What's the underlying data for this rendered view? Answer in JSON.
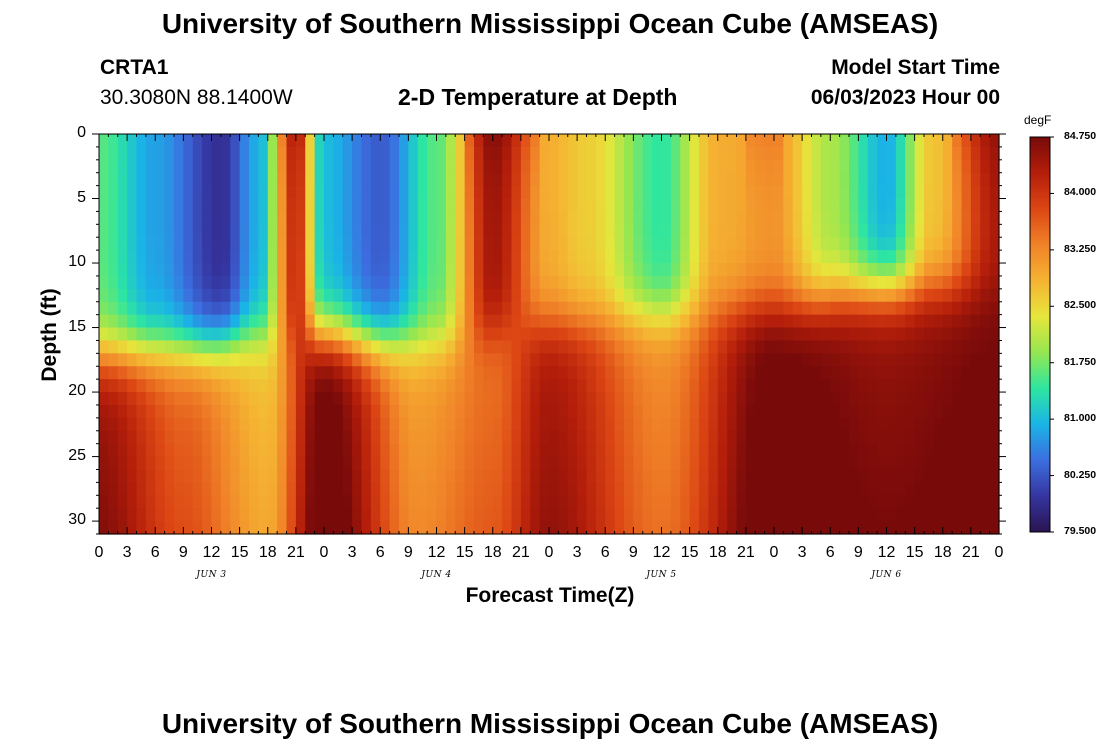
{
  "page": {
    "title": "University of Southern Mississippi Ocean Cube (AMSEAS)",
    "station": "CRTA1",
    "coordinates": "30.3080N  88.1400W",
    "subtitle": "2-D Temperature at Depth",
    "model_start_label": "Model Start Time",
    "model_start_value": "06/03/2023 Hour 00",
    "footer_title": "University of Southern Mississippi Ocean Cube (AMSEAS)"
  },
  "chart_data": {
    "type": "heatmap",
    "title": "2-D Temperature at Depth",
    "xlabel": "Forecast Time(Z)",
    "ylabel": "Depth (ft)",
    "x_tick_labels": [
      "0",
      "3",
      "6",
      "9",
      "12",
      "15",
      "18",
      "21",
      "0",
      "3",
      "6",
      "9",
      "12",
      "15",
      "18",
      "21",
      "0",
      "3",
      "6",
      "9",
      "12",
      "15",
      "18",
      "21",
      "0",
      "3",
      "6",
      "9",
      "12",
      "15",
      "18",
      "21",
      "0"
    ],
    "date_labels": [
      "JUN 3",
      "JUN 4",
      "JUN 5",
      "JUN 6"
    ],
    "x_range_hours": [
      0,
      96
    ],
    "y_ticks": [
      0,
      5,
      10,
      15,
      20,
      25,
      30
    ],
    "y_range_ft": [
      0,
      31
    ],
    "y_inverted": true,
    "colorbar": {
      "unit": "degF",
      "ticks": [
        "84.750",
        "84.000",
        "83.250",
        "82.500",
        "81.750",
        "81.000",
        "80.250",
        "79.500"
      ],
      "range": [
        79.5,
        84.75
      ],
      "colors": [
        "#2a1450",
        "#3535a0",
        "#3c6ee0",
        "#1ab4e6",
        "#2ee6a0",
        "#96e650",
        "#e6e63c",
        "#f5b432",
        "#f08228",
        "#dc4614",
        "#b41e0a",
        "#780a0a"
      ]
    },
    "temperature_model": {
      "layer_boundary_ft": [
        17,
        16.5,
        15.5,
        15.5,
        16,
        16,
        14.5,
        14,
        13.5,
        12,
        12
      ],
      "boundary_hours": [
        0,
        10,
        18,
        24,
        30,
        36,
        48,
        60,
        72,
        84,
        96
      ],
      "upper_layer_points": [
        {
          "h": 0,
          "t": 81.6
        },
        {
          "h": 6,
          "t": 80.8
        },
        {
          "h": 13,
          "t": 79.9
        },
        {
          "h": 17,
          "t": 80.9
        },
        {
          "h": 21,
          "t": 84.1
        },
        {
          "h": 24,
          "t": 81.0
        },
        {
          "h": 30,
          "t": 80.3
        },
        {
          "h": 36,
          "t": 81.6
        },
        {
          "h": 42,
          "t": 84.4
        },
        {
          "h": 48,
          "t": 82.9
        },
        {
          "h": 52,
          "t": 82.6
        },
        {
          "h": 60,
          "t": 81.4
        },
        {
          "h": 66,
          "t": 82.9
        },
        {
          "h": 72,
          "t": 83.1
        },
        {
          "h": 78,
          "t": 82.0
        },
        {
          "h": 84,
          "t": 80.9
        },
        {
          "h": 89,
          "t": 82.7
        },
        {
          "h": 96,
          "t": 84.3
        }
      ],
      "lower_layer_points": [
        {
          "h": 0,
          "t": 84.4
        },
        {
          "h": 9,
          "t": 83.5
        },
        {
          "h": 18,
          "t": 82.7
        },
        {
          "h": 24,
          "t": 84.8
        },
        {
          "h": 34,
          "t": 83.0
        },
        {
          "h": 42,
          "t": 83.4
        },
        {
          "h": 48,
          "t": 84.3
        },
        {
          "h": 60,
          "t": 83.2
        },
        {
          "h": 72,
          "t": 84.8
        },
        {
          "h": 84,
          "t": 84.5
        },
        {
          "h": 96,
          "t": 84.7
        }
      ]
    }
  }
}
